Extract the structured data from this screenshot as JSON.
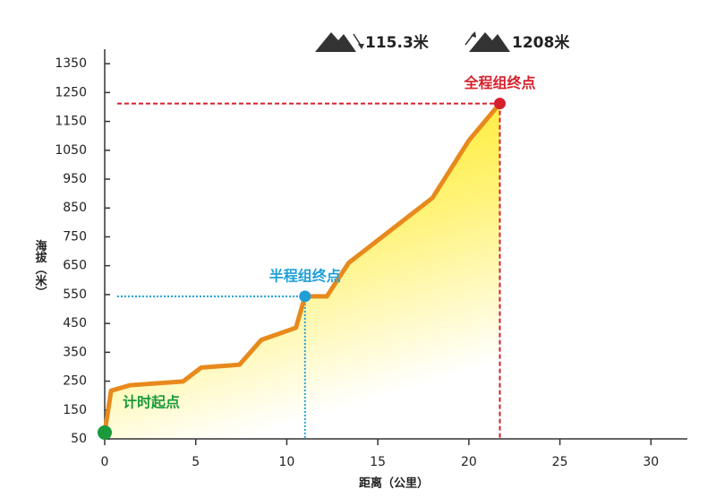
{
  "chart_data": {
    "type": "area",
    "x_label": "距离（公里）",
    "y_label": "海拔（米）",
    "stats": [
      "115.3米",
      "1208米"
    ],
    "x": [
      0,
      0.35,
      1.4,
      4.3,
      5.3,
      7.4,
      8.6,
      10.5,
      11.0,
      12.2,
      13.4,
      18.0,
      20.0,
      21.7
    ],
    "series": [
      {
        "color": "#e8891c",
        "values": [
          72,
          217,
          236,
          249,
          297,
          307,
          393,
          435,
          544,
          544,
          660,
          885,
          1084,
          1212
        ]
      }
    ],
    "xlim": [
      0,
      32
    ],
    "xticks": [
      0,
      5,
      10,
      15,
      20,
      25,
      30
    ],
    "ylim": [
      50,
      1400
    ],
    "yticks": [
      50,
      150,
      250,
      350,
      450,
      550,
      650,
      750,
      850,
      950,
      1050,
      1150,
      1250,
      1350
    ],
    "annotations": [
      {
        "text": "计时起点",
        "x": 0,
        "y": 72,
        "color": "#1a9a3a",
        "guides": false
      },
      {
        "text": "半程组终点",
        "x": 11.0,
        "y": 544,
        "color": "#1fa0d8",
        "guides": true
      },
      {
        "text": "全程组终点",
        "x": 21.7,
        "y": 1212,
        "color": "#d6202c",
        "guides": true
      }
    ]
  }
}
